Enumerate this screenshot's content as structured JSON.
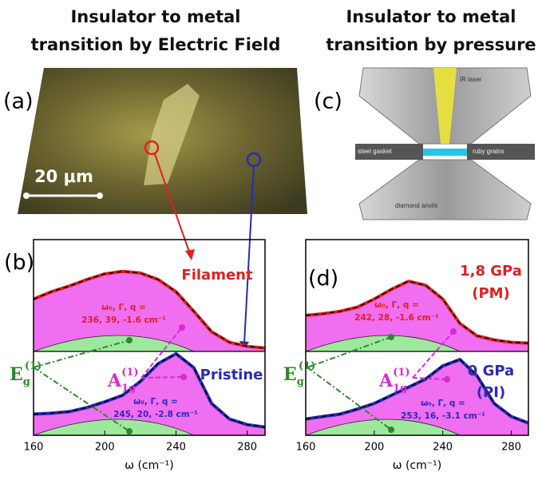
{
  "headings": {
    "left": [
      "Insulator to metal",
      "transition by Electric Field"
    ],
    "right": [
      "Insulator to metal",
      "transition by pressure"
    ]
  },
  "panel_a": {
    "label": "(a)",
    "scale_bar": "20 μm"
  },
  "panel_c": {
    "label": "(c)",
    "labels": [
      "IR laser",
      "steel gasket",
      "ruby grains",
      "diamond anvils"
    ]
  },
  "chart_data": [
    {
      "type": "line",
      "panel": "(b)",
      "x": [
        160,
        170,
        180,
        190,
        200,
        210,
        220,
        230,
        240,
        250,
        260,
        270,
        280,
        290
      ],
      "xlim": [
        160,
        290
      ],
      "ylim": [
        0,
        2.4
      ],
      "xticks": [
        160,
        200,
        240,
        280
      ],
      "xlabel": "ω (cm⁻¹)",
      "series": [
        {
          "name": "Filament",
          "color": "#e02020",
          "values": [
            1.67,
            1.76,
            1.83,
            1.91,
            1.98,
            2.01,
            1.99,
            1.91,
            1.76,
            1.52,
            1.27,
            1.14,
            1.09,
            1.07
          ]
        },
        {
          "name": "Pristine",
          "color": "#2a2ab8",
          "values": [
            0.26,
            0.27,
            0.29,
            0.34,
            0.41,
            0.49,
            0.66,
            0.88,
            1.0,
            0.83,
            0.39,
            0.2,
            0.13,
            0.1
          ]
        }
      ],
      "fit_labels": [
        [
          "ω₀, Γ, q =",
          "236, 39, -1.6 cm⁻¹"
        ],
        [
          "ω₀, Γ, q =",
          "245, 20, -2.8 cm⁻¹"
        ]
      ],
      "eg": [
        "E",
        "g",
        "(1)"
      ],
      "a1g": [
        "A",
        "1g",
        "(1)"
      ]
    },
    {
      "type": "line",
      "panel": "(d)",
      "x": [
        160,
        170,
        180,
        190,
        200,
        210,
        220,
        230,
        240,
        250,
        260,
        270,
        280,
        290
      ],
      "xlim": [
        160,
        290
      ],
      "ylim": [
        0,
        2.4
      ],
      "xticks": [
        160,
        200,
        240,
        280
      ],
      "xlabel": "ω (cm⁻¹)",
      "series": [
        {
          "name": "1,8 GPa",
          "phase": "(PM)",
          "color": "#e02020",
          "values": [
            1.47,
            1.49,
            1.52,
            1.57,
            1.67,
            1.79,
            1.89,
            1.84,
            1.67,
            1.37,
            1.22,
            1.17,
            1.14,
            1.13
          ]
        },
        {
          "name": "0 GPa",
          "phase": "(PI)",
          "color": "#2a2ab8",
          "values": [
            0.2,
            0.23,
            0.26,
            0.32,
            0.39,
            0.49,
            0.59,
            0.69,
            0.85,
            0.93,
            0.73,
            0.39,
            0.23,
            0.15
          ]
        }
      ],
      "fit_labels": [
        [
          "ω₀, Γ, q =",
          "242, 28, -1.6 cm⁻¹"
        ],
        [
          "ω₀, Γ, q =",
          "253, 16, -3.1 cm⁻¹"
        ]
      ],
      "eg": [
        "E",
        "g",
        "(1)"
      ],
      "a1g": [
        "A",
        "1g",
        "(1)"
      ]
    }
  ]
}
